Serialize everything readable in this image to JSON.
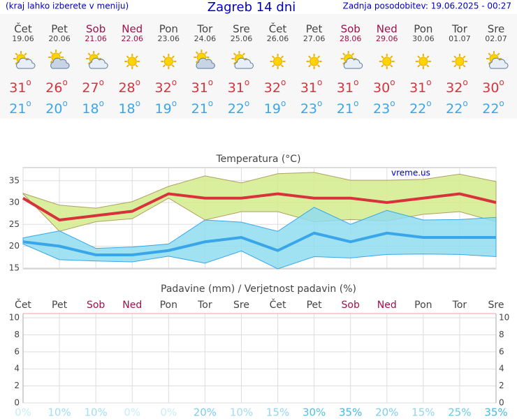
{
  "header": {
    "left": "(kraj lahko izberete v meniju)",
    "title": "Zagreb 14 dni",
    "updated": "Zadnja posodobitev: 19.06.2025 - 00:27"
  },
  "degree": "o",
  "days": [
    {
      "name": "Čet",
      "date": "19.06",
      "color": "#444444",
      "icon": "partly",
      "max": 31,
      "min": 21
    },
    {
      "name": "Pet",
      "date": "20.06",
      "color": "#444444",
      "icon": "cloudy",
      "max": 26,
      "min": 20
    },
    {
      "name": "Sob",
      "date": "21.06",
      "color": "#a0104a",
      "icon": "partly",
      "max": 27,
      "min": 18
    },
    {
      "name": "Ned",
      "date": "22.06",
      "color": "#a0104a",
      "icon": "sun",
      "max": 28,
      "min": 18
    },
    {
      "name": "Pon",
      "date": "23.06",
      "color": "#444444",
      "icon": "sun",
      "max": 32,
      "min": 19
    },
    {
      "name": "Tor",
      "date": "24.06",
      "color": "#444444",
      "icon": "cloudy",
      "max": 31,
      "min": 21
    },
    {
      "name": "Sre",
      "date": "25.06",
      "color": "#444444",
      "icon": "partly",
      "max": 31,
      "min": 22
    },
    {
      "name": "Čet",
      "date": "26.06",
      "color": "#444444",
      "icon": "sun",
      "max": 32,
      "min": 19
    },
    {
      "name": "Pet",
      "date": "27.06",
      "color": "#444444",
      "icon": "sun",
      "max": 31,
      "min": 23
    },
    {
      "name": "Sob",
      "date": "28.06",
      "color": "#a0104a",
      "icon": "partly",
      "max": 31,
      "min": 21
    },
    {
      "name": "Ned",
      "date": "29.06",
      "color": "#a0104a",
      "icon": "sun",
      "max": 30,
      "min": 23
    },
    {
      "name": "Pon",
      "date": "30.06",
      "color": "#444444",
      "icon": "sun",
      "max": 31,
      "min": 22
    },
    {
      "name": "Tor",
      "date": "01.07",
      "color": "#444444",
      "icon": "sun",
      "max": 32,
      "min": 22
    },
    {
      "name": "Sre",
      "date": "02.07",
      "color": "#444444",
      "icon": "partly",
      "max": 30,
      "min": 22
    }
  ],
  "chart_data": [
    {
      "type": "line",
      "title": "Temperatura (°C)",
      "annotation": "vreme.us",
      "ylim": [
        14.8,
        38
      ],
      "yticks": [
        15,
        20,
        25,
        30,
        35
      ],
      "grid": true,
      "bands": [
        {
          "color": "#d4ec8c",
          "upper": [
            32.1,
            29.4,
            28.7,
            30.2,
            33.7,
            36.1,
            34.5,
            36.6,
            36.9,
            35.1,
            35.1,
            35.3,
            36.5,
            34.8
          ],
          "lower": [
            32,
            23.4,
            25.6,
            26.3,
            31,
            26,
            27.9,
            27.9,
            25.6,
            26.1,
            25.8,
            27.3,
            27.9,
            25.6
          ]
        },
        {
          "color": "#8fdcf0",
          "upper": [
            21.9,
            23.5,
            19.5,
            19.8,
            20.5,
            26,
            25.5,
            23.4,
            28.9,
            25,
            28.2,
            26,
            26.1,
            26.6
          ],
          "lower": [
            20.5,
            16.9,
            16.6,
            16.4,
            17.7,
            16.1,
            18.9,
            14.8,
            17.6,
            17.3,
            18.1,
            18.2,
            18.1,
            17.6
          ]
        }
      ],
      "series": [
        {
          "color": "#d8323c",
          "values": [
            31,
            26,
            27,
            28,
            32,
            31,
            31,
            32,
            31,
            31,
            30,
            31,
            32,
            30
          ]
        },
        {
          "color": "#3aa6ea",
          "values": [
            21,
            20,
            18,
            18,
            19,
            21,
            22,
            19,
            23,
            21,
            23,
            22,
            22,
            22
          ]
        }
      ]
    },
    {
      "type": "bar",
      "title": "Padavine (mm) / Verjetnost padavin (%)",
      "categories": [
        "Čet",
        "Pet",
        "Sob",
        "Ned",
        "Pon",
        "Tor",
        "Sre",
        "Čet",
        "Pet",
        "Sob",
        "Ned",
        "Pon",
        "Tor",
        "Sre"
      ],
      "category_colors": [
        "#444444",
        "#444444",
        "#a0104a",
        "#a0104a",
        "#444444",
        "#444444",
        "#444444",
        "#444444",
        "#444444",
        "#a0104a",
        "#a0104a",
        "#444444",
        "#444444",
        "#444444"
      ],
      "values": [
        0,
        0,
        0,
        0,
        0,
        0,
        0,
        0,
        0,
        0,
        0,
        0,
        0,
        0
      ],
      "color": "#3a7fd0",
      "ylim": [
        0,
        10.5
      ],
      "yticks": [
        0,
        2,
        4,
        6,
        8,
        10
      ],
      "grid": true,
      "probability": {
        "values": [
          0,
          10,
          10,
          0,
          0,
          20,
          10,
          15,
          30,
          35,
          20,
          15,
          25,
          35
        ],
        "value_labels": [
          "0%",
          "10%",
          "10%",
          "0%",
          "0%",
          "20%",
          "10%",
          "15%",
          "30%",
          "35%",
          "20%",
          "15%",
          "25%",
          "35%"
        ]
      }
    }
  ]
}
